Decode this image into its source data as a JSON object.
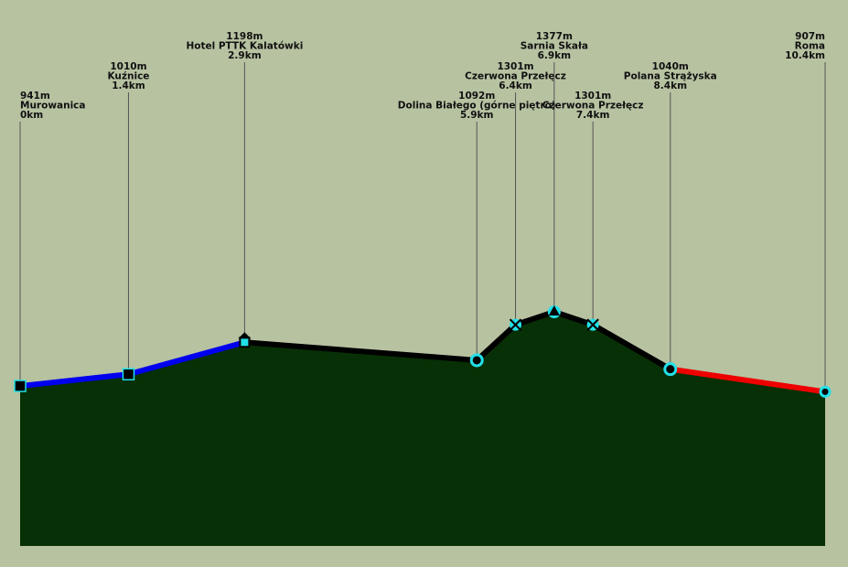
{
  "chart_data": {
    "type": "elevation-profile",
    "points": [
      {
        "name": "Murowanica",
        "elevation": 941,
        "elevation_label": "941m",
        "distance": 0,
        "distance_label": "0km",
        "marker": "square"
      },
      {
        "name": "Kuźnice",
        "elevation": 1010,
        "elevation_label": "1010m",
        "distance": 1.4,
        "distance_label": "1.4km",
        "marker": "square"
      },
      {
        "name": "Hotel PTTK Kalatówki",
        "elevation": 1198,
        "elevation_label": "1198m",
        "distance": 2.9,
        "distance_label": "2.9km",
        "marker": "hut"
      },
      {
        "name": "Dolina Białego (górne piętro)",
        "elevation": 1092,
        "elevation_label": "1092m",
        "distance": 5.9,
        "distance_label": "5.9km",
        "marker": "circle"
      },
      {
        "name": "Czerwona Przełęcz",
        "elevation": 1301,
        "elevation_label": "1301m",
        "distance": 6.4,
        "distance_label": "6.4km",
        "marker": "cross"
      },
      {
        "name": "Sarnia Skała",
        "elevation": 1377,
        "elevation_label": "1377m",
        "distance": 6.9,
        "distance_label": "6.9km",
        "marker": "triangle"
      },
      {
        "name": "Czerwona Przełęcz",
        "elevation": 1301,
        "elevation_label": "1301m",
        "distance": 7.4,
        "distance_label": "7.4km",
        "marker": "cross"
      },
      {
        "name": "Polana Strążyska",
        "elevation": 1040,
        "elevation_label": "1040m",
        "distance": 8.4,
        "distance_label": "8.4km",
        "marker": "circle"
      },
      {
        "name": "Roma",
        "elevation": 907,
        "elevation_label": "907m",
        "distance": 10.4,
        "distance_label": "10.4km",
        "marker": "dot"
      }
    ],
    "line_colors": [
      "#0000ee",
      "#0000ee",
      "#000000",
      "#000000",
      "#000000",
      "#000000",
      "#000000",
      "#ee0000"
    ]
  }
}
